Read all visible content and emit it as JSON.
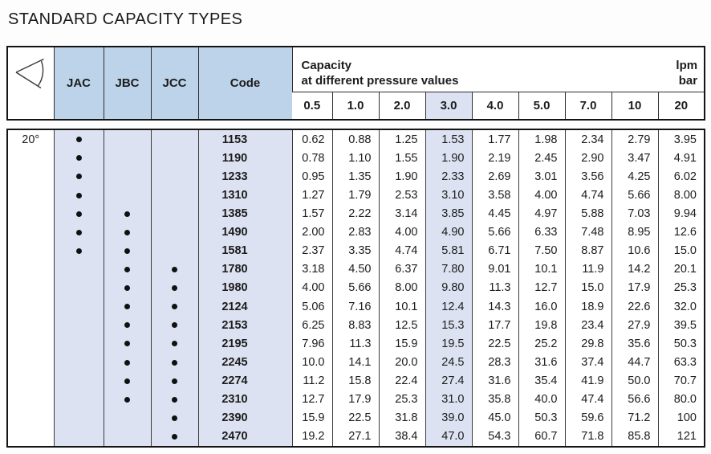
{
  "page_title": "STANDARD CAPACITY TYPES",
  "colors": {
    "header_blue": "#bdd3e9",
    "body_lavender": "#dde2f2",
    "border": "#141414",
    "text": "#1c1c1c"
  },
  "table": {
    "angle_icon": "spray-angle-icon",
    "angle_label": "20°",
    "type_columns": [
      "JAC",
      "JBC",
      "JCC"
    ],
    "code_header": "Code",
    "capacity_header": {
      "line1": "Capacity",
      "line2": "at different pressure values"
    },
    "units": {
      "line1": "lpm",
      "line2": "bar"
    },
    "pressure_values": [
      "0.5",
      "1.0",
      "2.0",
      "3.0",
      "4.0",
      "5.0",
      "7.0",
      "10",
      "20"
    ],
    "highlight_pressure_index": 3,
    "rows": [
      {
        "jac": true,
        "jbc": false,
        "jcc": false,
        "code": "1153",
        "values": [
          "0.62",
          "0.88",
          "1.25",
          "1.53",
          "1.77",
          "1.98",
          "2.34",
          "2.79",
          "3.95"
        ]
      },
      {
        "jac": true,
        "jbc": false,
        "jcc": false,
        "code": "1190",
        "values": [
          "0.78",
          "1.10",
          "1.55",
          "1.90",
          "2.19",
          "2.45",
          "2.90",
          "3.47",
          "4.91"
        ]
      },
      {
        "jac": true,
        "jbc": false,
        "jcc": false,
        "code": "1233",
        "values": [
          "0.95",
          "1.35",
          "1.90",
          "2.33",
          "2.69",
          "3.01",
          "3.56",
          "4.25",
          "6.02"
        ]
      },
      {
        "jac": true,
        "jbc": false,
        "jcc": false,
        "code": "1310",
        "values": [
          "1.27",
          "1.79",
          "2.53",
          "3.10",
          "3.58",
          "4.00",
          "4.74",
          "5.66",
          "8.00"
        ]
      },
      {
        "jac": true,
        "jbc": true,
        "jcc": false,
        "code": "1385",
        "values": [
          "1.57",
          "2.22",
          "3.14",
          "3.85",
          "4.45",
          "4.97",
          "5.88",
          "7.03",
          "9.94"
        ]
      },
      {
        "jac": true,
        "jbc": true,
        "jcc": false,
        "code": "1490",
        "values": [
          "2.00",
          "2.83",
          "4.00",
          "4.90",
          "5.66",
          "6.33",
          "7.48",
          "8.95",
          "12.6"
        ]
      },
      {
        "jac": true,
        "jbc": true,
        "jcc": false,
        "code": "1581",
        "values": [
          "2.37",
          "3.35",
          "4.74",
          "5.81",
          "6.71",
          "7.50",
          "8.87",
          "10.6",
          "15.0"
        ]
      },
      {
        "jac": false,
        "jbc": true,
        "jcc": true,
        "code": "1780",
        "values": [
          "3.18",
          "4.50",
          "6.37",
          "7.80",
          "9.01",
          "10.1",
          "11.9",
          "14.2",
          "20.1"
        ]
      },
      {
        "jac": false,
        "jbc": true,
        "jcc": true,
        "code": "1980",
        "values": [
          "4.00",
          "5.66",
          "8.00",
          "9.80",
          "11.3",
          "12.7",
          "15.0",
          "17.9",
          "25.3"
        ]
      },
      {
        "jac": false,
        "jbc": true,
        "jcc": true,
        "code": "2124",
        "values": [
          "5.06",
          "7.16",
          "10.1",
          "12.4",
          "14.3",
          "16.0",
          "18.9",
          "22.6",
          "32.0"
        ]
      },
      {
        "jac": false,
        "jbc": true,
        "jcc": true,
        "code": "2153",
        "values": [
          "6.25",
          "8.83",
          "12.5",
          "15.3",
          "17.7",
          "19.8",
          "23.4",
          "27.9",
          "39.5"
        ]
      },
      {
        "jac": false,
        "jbc": true,
        "jcc": true,
        "code": "2195",
        "values": [
          "7.96",
          "11.3",
          "15.9",
          "19.5",
          "22.5",
          "25.2",
          "29.8",
          "35.6",
          "50.3"
        ]
      },
      {
        "jac": false,
        "jbc": true,
        "jcc": true,
        "code": "2245",
        "values": [
          "10.0",
          "14.1",
          "20.0",
          "24.5",
          "28.3",
          "31.6",
          "37.4",
          "44.7",
          "63.3"
        ]
      },
      {
        "jac": false,
        "jbc": true,
        "jcc": true,
        "code": "2274",
        "values": [
          "11.2",
          "15.8",
          "22.4",
          "27.4",
          "31.6",
          "35.4",
          "41.9",
          "50.0",
          "70.7"
        ]
      },
      {
        "jac": false,
        "jbc": true,
        "jcc": true,
        "code": "2310",
        "values": [
          "12.7",
          "17.9",
          "25.3",
          "31.0",
          "35.8",
          "40.0",
          "47.4",
          "56.6",
          "80.0"
        ]
      },
      {
        "jac": false,
        "jbc": false,
        "jcc": true,
        "code": "2390",
        "values": [
          "15.9",
          "22.5",
          "31.8",
          "39.0",
          "45.0",
          "50.3",
          "59.6",
          "71.2",
          "100"
        ]
      },
      {
        "jac": false,
        "jbc": false,
        "jcc": true,
        "code": "2470",
        "values": [
          "19.2",
          "27.1",
          "38.4",
          "47.0",
          "54.3",
          "60.7",
          "71.8",
          "85.8",
          "121"
        ]
      }
    ]
  }
}
